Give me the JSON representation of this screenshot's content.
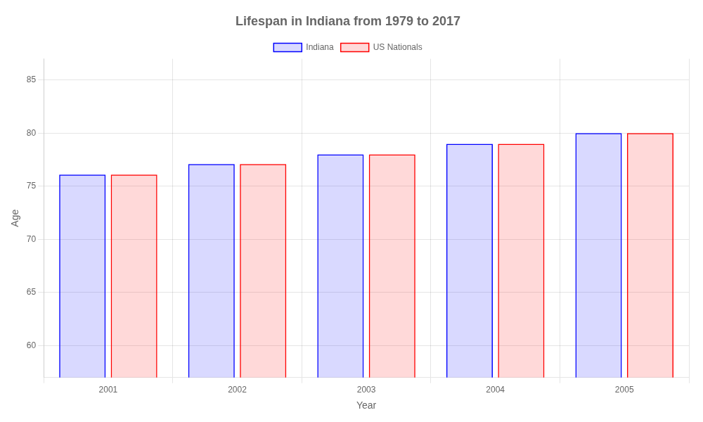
{
  "chart_data": {
    "type": "bar",
    "title": "Lifespan in Indiana from 1979 to 2017",
    "xlabel": "Year",
    "ylabel": "Age",
    "categories": [
      "2001",
      "2002",
      "2003",
      "2004",
      "2005"
    ],
    "series": [
      {
        "name": "Indiana",
        "color": "#0000ff",
        "values": [
          76.1,
          77.1,
          78.0,
          79.0,
          80.0
        ]
      },
      {
        "name": "US Nationals",
        "color": "#ff0000",
        "values": [
          76.1,
          77.1,
          78.0,
          79.0,
          80.0
        ]
      }
    ],
    "ylim": [
      57,
      87
    ],
    "yticks": [
      60,
      65,
      70,
      75,
      80,
      85
    ],
    "grid": true,
    "legend": "top"
  }
}
